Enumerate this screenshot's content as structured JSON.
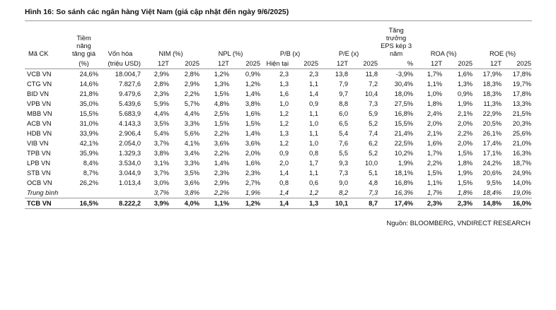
{
  "title": "Hình 16: So sánh các ngân hàng Việt Nam (giá cập nhật đến ngày 9/6/2025)",
  "table": {
    "header_top": [
      "Mã CK",
      "Tiềm năng tăng giá",
      "Vốn hóa",
      "NIM (%)",
      "NPL (%)",
      "P/B (x)",
      "P/E (x)",
      "Tăng trưởng EPS kép 3 năm",
      "ROA (%)",
      "ROE (%)"
    ],
    "header_sub": [
      null,
      "(%)",
      "(triệu USD)",
      "12T",
      "2025",
      "12T",
      "2025",
      "Hiện tại",
      "2025",
      "12T",
      "2025",
      "%",
      "12T",
      "2025",
      "12T",
      "2025"
    ],
    "rows": [
      [
        "VCB VN",
        "24,6%",
        "18.004,7",
        "2,9%",
        "2,8%",
        "1,2%",
        "0,9%",
        "2,3",
        "2,3",
        "13,8",
        "11,8",
        "-3,9%",
        "1,7%",
        "1,6%",
        "17,9%",
        "17,8%"
      ],
      [
        "CTG VN",
        "14,6%",
        "7.827,6",
        "2,8%",
        "2,9%",
        "1,3%",
        "1,2%",
        "1,3",
        "1,1",
        "7,9",
        "7,2",
        "30,4%",
        "1,1%",
        "1,3%",
        "18,3%",
        "19,7%"
      ],
      [
        "BID VN",
        "21,8%",
        "9.479,6",
        "2,3%",
        "2,2%",
        "1,5%",
        "1,4%",
        "1,6",
        "1,4",
        "9,7",
        "10,4",
        "18,0%",
        "1,0%",
        "0,9%",
        "18,3%",
        "17,8%"
      ],
      [
        "VPB VN",
        "35,0%",
        "5.439,6",
        "5,9%",
        "5,7%",
        "4,8%",
        "3,8%",
        "1,0",
        "0,9",
        "8,8",
        "7,3",
        "27,5%",
        "1,8%",
        "1,9%",
        "11,3%",
        "13,3%"
      ],
      [
        "MBB VN",
        "15,5%",
        "5.683,9",
        "4,4%",
        "4,4%",
        "2,5%",
        "1,6%",
        "1,2",
        "1,1",
        "6,0",
        "5,9",
        "16,8%",
        "2,4%",
        "2,1%",
        "22,9%",
        "21,5%"
      ],
      [
        "ACB VN",
        "31,0%",
        "4.143,3",
        "3,5%",
        "3,3%",
        "1,5%",
        "1,5%",
        "1,2",
        "1,0",
        "6,5",
        "5,2",
        "15,5%",
        "2,0%",
        "2,0%",
        "20,5%",
        "20,3%"
      ],
      [
        "HDB VN",
        "33,9%",
        "2.906,4",
        "5,4%",
        "5,6%",
        "2,2%",
        "1,4%",
        "1,3",
        "1,1",
        "5,4",
        "7,4",
        "21,4%",
        "2,1%",
        "2,2%",
        "26,1%",
        "25,6%"
      ],
      [
        "VIB VN",
        "42,1%",
        "2.054,0",
        "3,7%",
        "4,1%",
        "3,6%",
        "3,6%",
        "1,2",
        "1,0",
        "7,6",
        "6,2",
        "22,5%",
        "1,6%",
        "2,0%",
        "17,4%",
        "21,0%"
      ],
      [
        "TPB VN",
        "35,9%",
        "1.329,3",
        "3,8%",
        "3,4%",
        "2,2%",
        "2,0%",
        "0,9",
        "0,8",
        "5,5",
        "5,2",
        "10,2%",
        "1,7%",
        "1,5%",
        "17,1%",
        "16,3%"
      ],
      [
        "LPB VN",
        "8,4%",
        "3.534,0",
        "3,1%",
        "3,3%",
        "1,4%",
        "1,6%",
        "2,0",
        "1,7",
        "9,3",
        "10,0",
        "1,9%",
        "2,2%",
        "1,8%",
        "24,2%",
        "18,7%"
      ],
      [
        "STB VN",
        "8,7%",
        "3.044,9",
        "3,7%",
        "3,5%",
        "2,3%",
        "2,3%",
        "1,4",
        "1,1",
        "7,3",
        "5,1",
        "18,1%",
        "1,5%",
        "1,9%",
        "20,6%",
        "24,9%"
      ],
      [
        "OCB VN",
        "26,2%",
        "1.013,4",
        "3,0%",
        "3,6%",
        "2,9%",
        "2,7%",
        "0,8",
        "0,6",
        "9,0",
        "4,8",
        "16,8%",
        "1,1%",
        "1,5%",
        "9,5%",
        "14,0%"
      ],
      [
        "Trung bình",
        null,
        null,
        "3,7%",
        "3,8%",
        "2,2%",
        "1,9%",
        "1,4",
        "1,2",
        "8,2",
        "7,3",
        "16,3%",
        "1,7%",
        "1,8%",
        "18,4%",
        "19,0%"
      ],
      [
        "TCB VN",
        "16,5%",
        "8.222,2",
        "3,9%",
        "4,0%",
        "1,1%",
        "1,2%",
        "1,4",
        "1,3",
        "10,1",
        "8,7",
        "17,4%",
        "2,3%",
        "2,3%",
        "14,8%",
        "16,0%"
      ]
    ]
  },
  "source": "Nguồn: BLOOMBERG, VNDIRECT RESEARCH"
}
